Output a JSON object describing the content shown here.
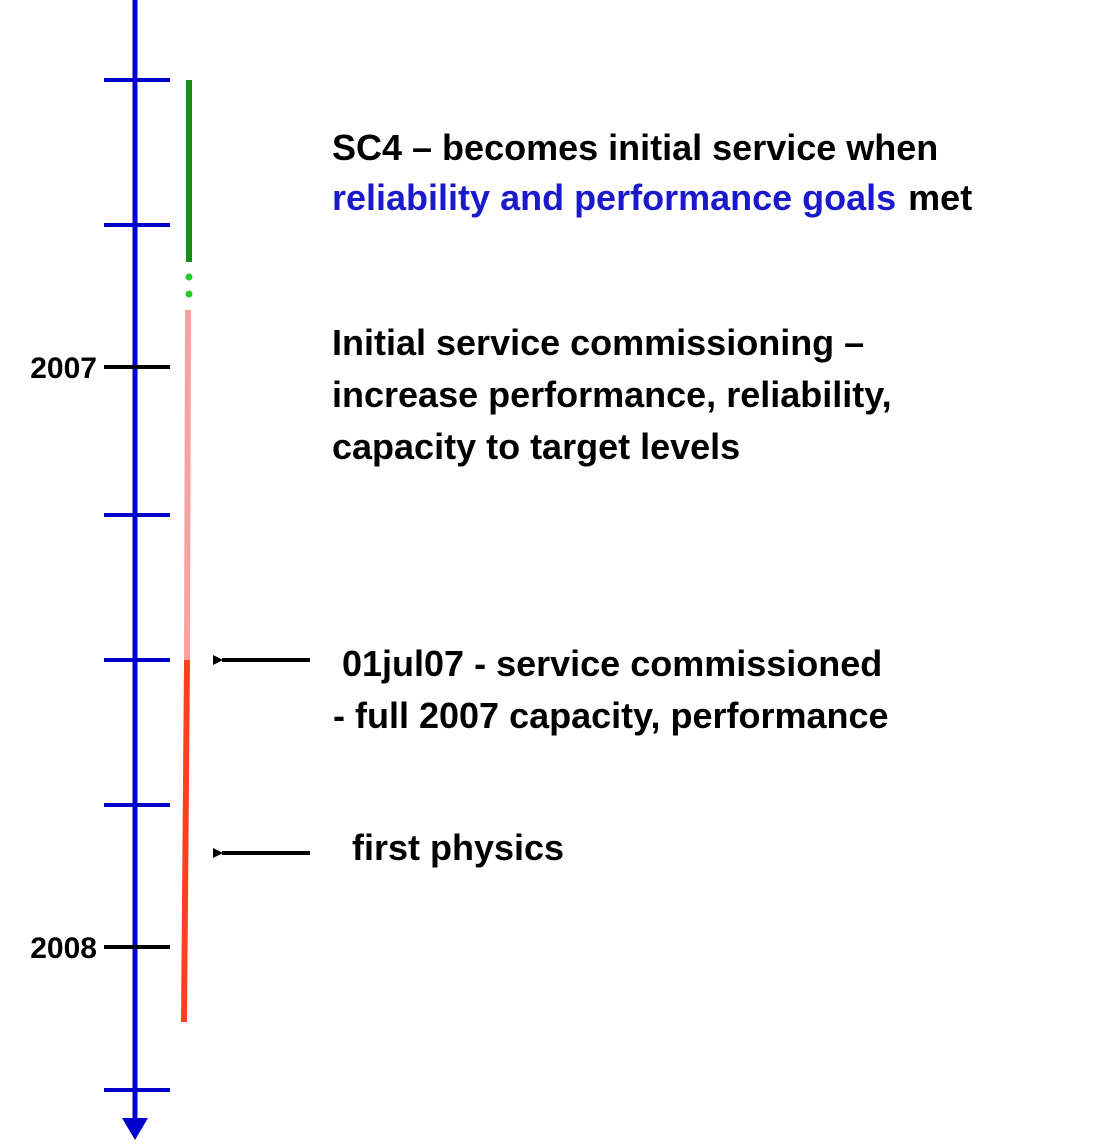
{
  "axis": {
    "labels": [
      "2007",
      "2008"
    ]
  },
  "sc4": {
    "line1": "SC4 – becomes initial service when",
    "highlight": "reliability and performance goals",
    "rest": "met"
  },
  "commissioning": {
    "lines": [
      "Initial service commissioning –",
      "increase performance, reliability,",
      "capacity to target levels"
    ]
  },
  "milestones": [
    {
      "lines": [
        "01jul07 - service commissioned",
        "- full 2007 capacity, performance"
      ]
    },
    {
      "lines": [
        "first physics"
      ]
    }
  ]
}
